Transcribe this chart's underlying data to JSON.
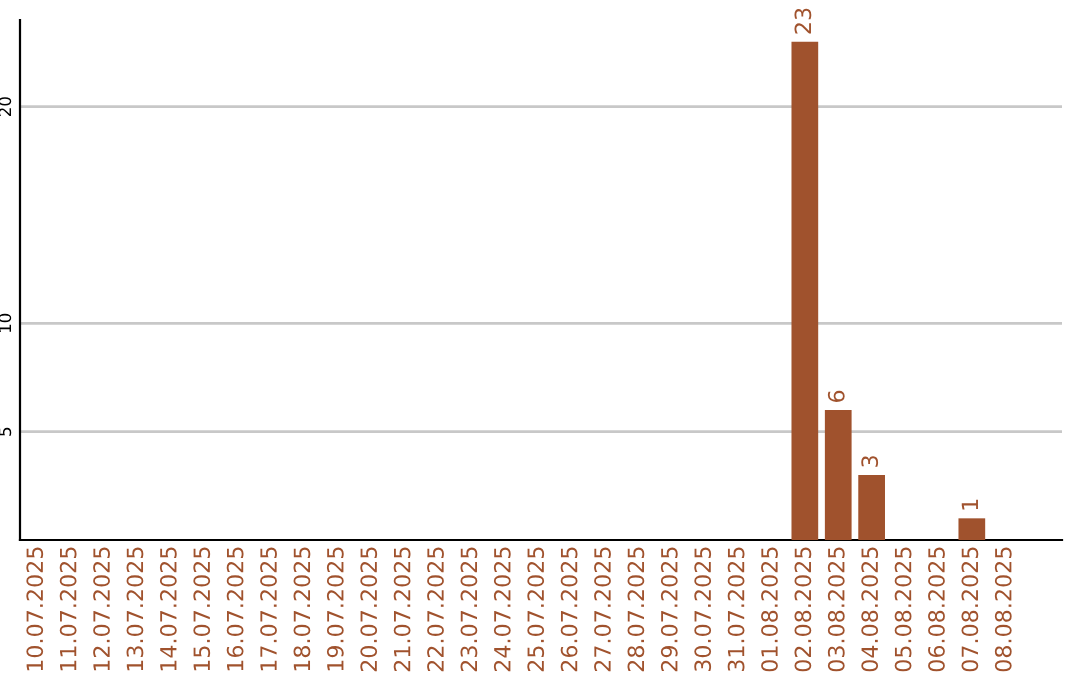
{
  "chart_data": {
    "type": "bar",
    "categories": [
      "10.07.2025",
      "11.07.2025",
      "12.07.2025",
      "13.07.2025",
      "14.07.2025",
      "15.07.2025",
      "16.07.2025",
      "17.07.2025",
      "18.07.2025",
      "19.07.2025",
      "20.07.2025",
      "21.07.2025",
      "22.07.2025",
      "23.07.2025",
      "24.07.2025",
      "25.07.2025",
      "26.07.2025",
      "27.07.2025",
      "28.07.2025",
      "29.07.2025",
      "30.07.2025",
      "31.07.2025",
      "01.08.2025",
      "02.08.2025",
      "03.08.2025",
      "04.08.2025",
      "05.08.2025",
      "06.08.2025",
      "07.08.2025",
      "08.08.2025"
    ],
    "values": [
      0,
      0,
      0,
      0,
      0,
      0,
      0,
      0,
      0,
      0,
      0,
      0,
      0,
      0,
      0,
      0,
      0,
      0,
      0,
      0,
      0,
      0,
      0,
      23,
      6,
      3,
      0,
      0,
      1,
      0
    ],
    "value_labels": [
      null,
      null,
      null,
      null,
      null,
      null,
      null,
      null,
      null,
      null,
      null,
      null,
      null,
      null,
      null,
      null,
      null,
      null,
      null,
      null,
      null,
      null,
      null,
      "23",
      "6",
      "3",
      null,
      null,
      "1",
      null
    ],
    "color": "#a0522d",
    "ylim": [
      0,
      24
    ],
    "yticks": [
      5,
      10,
      20
    ],
    "grid": "y"
  }
}
